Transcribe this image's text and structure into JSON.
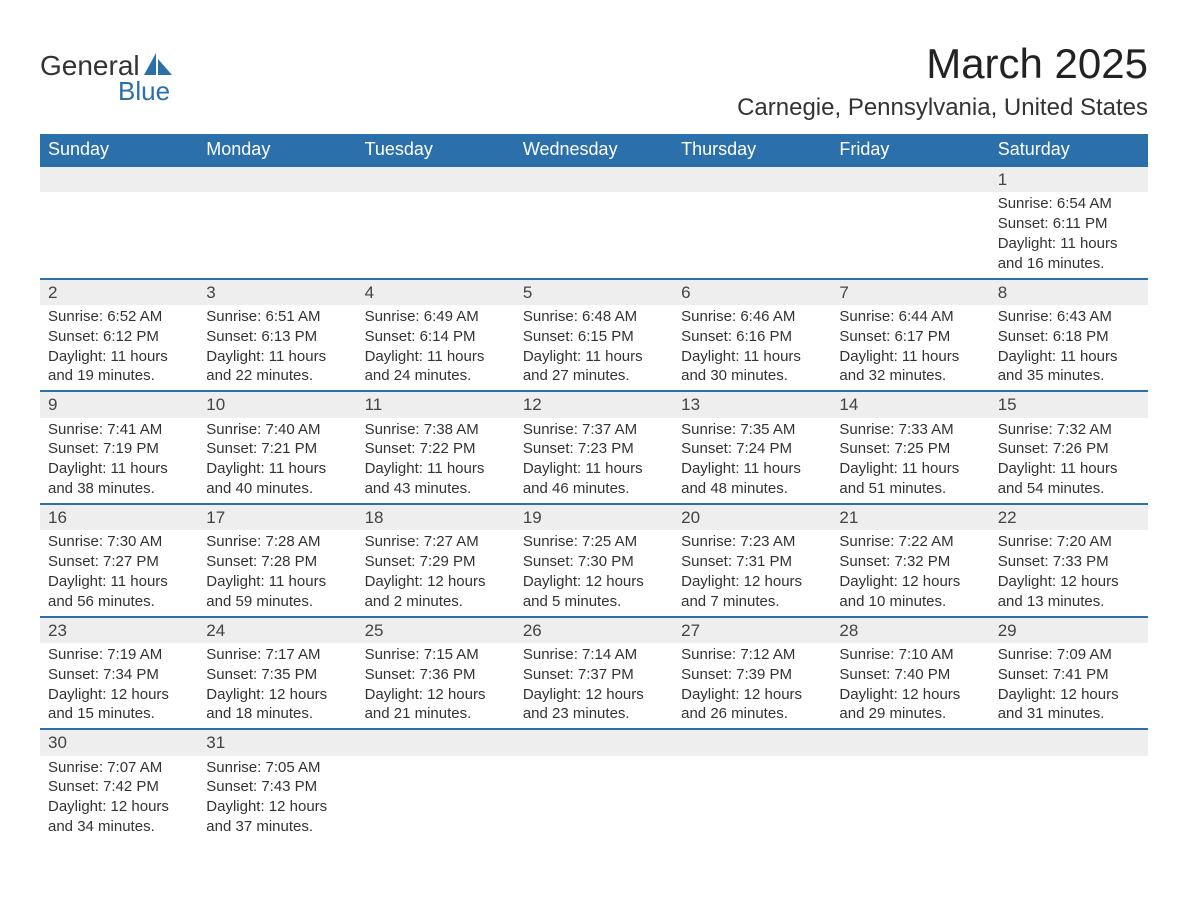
{
  "brand": {
    "word1": "General",
    "word2": "Blue",
    "accent_color": "#2b6fab",
    "text_color": "#333333"
  },
  "title": "March 2025",
  "location": "Carnegie, Pennsylvania, United States",
  "colors": {
    "header_bg": "#2b6fab",
    "header_text": "#ffffff",
    "daynum_bg": "#eeeeee",
    "row_border": "#2b6fab",
    "body_text": "#333333",
    "background": "#ffffff"
  },
  "typography": {
    "title_fontsize_pt": 32,
    "location_fontsize_pt": 18,
    "header_fontsize_pt": 14,
    "daynum_fontsize_pt": 13,
    "body_fontsize_pt": 11,
    "font_family": "Arial"
  },
  "layout": {
    "columns": 7,
    "rows": 6
  },
  "weekday_labels": [
    "Sunday",
    "Monday",
    "Tuesday",
    "Wednesday",
    "Thursday",
    "Friday",
    "Saturday"
  ],
  "weeks": [
    [
      null,
      null,
      null,
      null,
      null,
      null,
      {
        "day": "1",
        "sunrise": "Sunrise: 6:54 AM",
        "sunset": "Sunset: 6:11 PM",
        "daylight1": "Daylight: 11 hours",
        "daylight2": "and 16 minutes."
      }
    ],
    [
      {
        "day": "2",
        "sunrise": "Sunrise: 6:52 AM",
        "sunset": "Sunset: 6:12 PM",
        "daylight1": "Daylight: 11 hours",
        "daylight2": "and 19 minutes."
      },
      {
        "day": "3",
        "sunrise": "Sunrise: 6:51 AM",
        "sunset": "Sunset: 6:13 PM",
        "daylight1": "Daylight: 11 hours",
        "daylight2": "and 22 minutes."
      },
      {
        "day": "4",
        "sunrise": "Sunrise: 6:49 AM",
        "sunset": "Sunset: 6:14 PM",
        "daylight1": "Daylight: 11 hours",
        "daylight2": "and 24 minutes."
      },
      {
        "day": "5",
        "sunrise": "Sunrise: 6:48 AM",
        "sunset": "Sunset: 6:15 PM",
        "daylight1": "Daylight: 11 hours",
        "daylight2": "and 27 minutes."
      },
      {
        "day": "6",
        "sunrise": "Sunrise: 6:46 AM",
        "sunset": "Sunset: 6:16 PM",
        "daylight1": "Daylight: 11 hours",
        "daylight2": "and 30 minutes."
      },
      {
        "day": "7",
        "sunrise": "Sunrise: 6:44 AM",
        "sunset": "Sunset: 6:17 PM",
        "daylight1": "Daylight: 11 hours",
        "daylight2": "and 32 minutes."
      },
      {
        "day": "8",
        "sunrise": "Sunrise: 6:43 AM",
        "sunset": "Sunset: 6:18 PM",
        "daylight1": "Daylight: 11 hours",
        "daylight2": "and 35 minutes."
      }
    ],
    [
      {
        "day": "9",
        "sunrise": "Sunrise: 7:41 AM",
        "sunset": "Sunset: 7:19 PM",
        "daylight1": "Daylight: 11 hours",
        "daylight2": "and 38 minutes."
      },
      {
        "day": "10",
        "sunrise": "Sunrise: 7:40 AM",
        "sunset": "Sunset: 7:21 PM",
        "daylight1": "Daylight: 11 hours",
        "daylight2": "and 40 minutes."
      },
      {
        "day": "11",
        "sunrise": "Sunrise: 7:38 AM",
        "sunset": "Sunset: 7:22 PM",
        "daylight1": "Daylight: 11 hours",
        "daylight2": "and 43 minutes."
      },
      {
        "day": "12",
        "sunrise": "Sunrise: 7:37 AM",
        "sunset": "Sunset: 7:23 PM",
        "daylight1": "Daylight: 11 hours",
        "daylight2": "and 46 minutes."
      },
      {
        "day": "13",
        "sunrise": "Sunrise: 7:35 AM",
        "sunset": "Sunset: 7:24 PM",
        "daylight1": "Daylight: 11 hours",
        "daylight2": "and 48 minutes."
      },
      {
        "day": "14",
        "sunrise": "Sunrise: 7:33 AM",
        "sunset": "Sunset: 7:25 PM",
        "daylight1": "Daylight: 11 hours",
        "daylight2": "and 51 minutes."
      },
      {
        "day": "15",
        "sunrise": "Sunrise: 7:32 AM",
        "sunset": "Sunset: 7:26 PM",
        "daylight1": "Daylight: 11 hours",
        "daylight2": "and 54 minutes."
      }
    ],
    [
      {
        "day": "16",
        "sunrise": "Sunrise: 7:30 AM",
        "sunset": "Sunset: 7:27 PM",
        "daylight1": "Daylight: 11 hours",
        "daylight2": "and 56 minutes."
      },
      {
        "day": "17",
        "sunrise": "Sunrise: 7:28 AM",
        "sunset": "Sunset: 7:28 PM",
        "daylight1": "Daylight: 11 hours",
        "daylight2": "and 59 minutes."
      },
      {
        "day": "18",
        "sunrise": "Sunrise: 7:27 AM",
        "sunset": "Sunset: 7:29 PM",
        "daylight1": "Daylight: 12 hours",
        "daylight2": "and 2 minutes."
      },
      {
        "day": "19",
        "sunrise": "Sunrise: 7:25 AM",
        "sunset": "Sunset: 7:30 PM",
        "daylight1": "Daylight: 12 hours",
        "daylight2": "and 5 minutes."
      },
      {
        "day": "20",
        "sunrise": "Sunrise: 7:23 AM",
        "sunset": "Sunset: 7:31 PM",
        "daylight1": "Daylight: 12 hours",
        "daylight2": "and 7 minutes."
      },
      {
        "day": "21",
        "sunrise": "Sunrise: 7:22 AM",
        "sunset": "Sunset: 7:32 PM",
        "daylight1": "Daylight: 12 hours",
        "daylight2": "and 10 minutes."
      },
      {
        "day": "22",
        "sunrise": "Sunrise: 7:20 AM",
        "sunset": "Sunset: 7:33 PM",
        "daylight1": "Daylight: 12 hours",
        "daylight2": "and 13 minutes."
      }
    ],
    [
      {
        "day": "23",
        "sunrise": "Sunrise: 7:19 AM",
        "sunset": "Sunset: 7:34 PM",
        "daylight1": "Daylight: 12 hours",
        "daylight2": "and 15 minutes."
      },
      {
        "day": "24",
        "sunrise": "Sunrise: 7:17 AM",
        "sunset": "Sunset: 7:35 PM",
        "daylight1": "Daylight: 12 hours",
        "daylight2": "and 18 minutes."
      },
      {
        "day": "25",
        "sunrise": "Sunrise: 7:15 AM",
        "sunset": "Sunset: 7:36 PM",
        "daylight1": "Daylight: 12 hours",
        "daylight2": "and 21 minutes."
      },
      {
        "day": "26",
        "sunrise": "Sunrise: 7:14 AM",
        "sunset": "Sunset: 7:37 PM",
        "daylight1": "Daylight: 12 hours",
        "daylight2": "and 23 minutes."
      },
      {
        "day": "27",
        "sunrise": "Sunrise: 7:12 AM",
        "sunset": "Sunset: 7:39 PM",
        "daylight1": "Daylight: 12 hours",
        "daylight2": "and 26 minutes."
      },
      {
        "day": "28",
        "sunrise": "Sunrise: 7:10 AM",
        "sunset": "Sunset: 7:40 PM",
        "daylight1": "Daylight: 12 hours",
        "daylight2": "and 29 minutes."
      },
      {
        "day": "29",
        "sunrise": "Sunrise: 7:09 AM",
        "sunset": "Sunset: 7:41 PM",
        "daylight1": "Daylight: 12 hours",
        "daylight2": "and 31 minutes."
      }
    ],
    [
      {
        "day": "30",
        "sunrise": "Sunrise: 7:07 AM",
        "sunset": "Sunset: 7:42 PM",
        "daylight1": "Daylight: 12 hours",
        "daylight2": "and 34 minutes."
      },
      {
        "day": "31",
        "sunrise": "Sunrise: 7:05 AM",
        "sunset": "Sunset: 7:43 PM",
        "daylight1": "Daylight: 12 hours",
        "daylight2": "and 37 minutes."
      },
      null,
      null,
      null,
      null,
      null
    ]
  ]
}
